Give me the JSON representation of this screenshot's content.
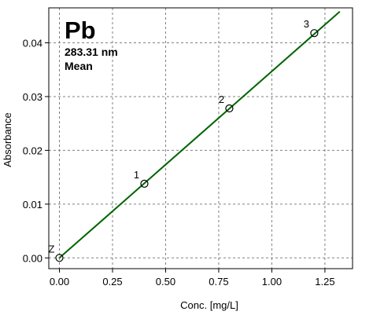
{
  "chart_data": {
    "type": "scatter",
    "title": "Pb",
    "subtitle_lines": [
      "283.31 nm",
      "Mean"
    ],
    "xlabel": "Conc. [mg/L]",
    "ylabel": "Absorbance",
    "xlim": [
      -0.05,
      1.38
    ],
    "ylim": [
      -0.002,
      0.0465
    ],
    "x_ticks": [
      0.0,
      0.25,
      0.5,
      0.75,
      1.0,
      1.25
    ],
    "x_tick_labels": [
      "0.00",
      "0.25",
      "0.50",
      "0.75",
      "1.00",
      "1.25"
    ],
    "y_ticks": [
      0.0,
      0.01,
      0.02,
      0.03,
      0.04
    ],
    "y_tick_labels": [
      "0.00",
      "0.01",
      "0.02",
      "0.03",
      "0.04"
    ],
    "grid": true,
    "points": [
      {
        "label": "Z",
        "x": 0.0,
        "y": 0.0
      },
      {
        "label": "1",
        "x": 0.4,
        "y": 0.0138
      },
      {
        "label": "2",
        "x": 0.8,
        "y": 0.0278
      },
      {
        "label": "3",
        "x": 1.2,
        "y": 0.0418
      }
    ],
    "fit_line": {
      "x": [
        0.0,
        1.32
      ],
      "y": [
        0.0,
        0.0458
      ]
    },
    "colors": {
      "line": "#006400",
      "marker": "#000000",
      "grid": "#808080"
    }
  }
}
